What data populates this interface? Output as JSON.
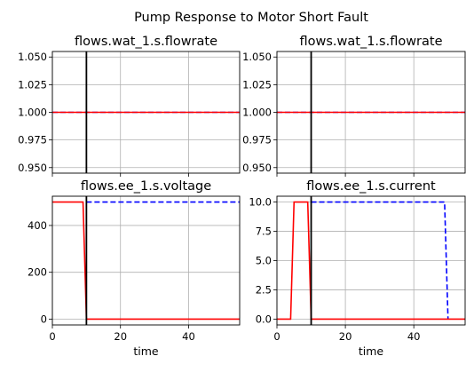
{
  "figure": {
    "suptitle": "Pump Response to Motor Short Fault"
  },
  "colors": {
    "nominal": "#0000ff",
    "faulty": "#ff0000",
    "fault_time_line": "#000000",
    "grid": "#b0b0b0"
  },
  "chart_data": [
    {
      "type": "line",
      "title": "flows.wat_1.s.flowrate",
      "xlabel": "",
      "show_xticklabels": false,
      "xlim": [
        0,
        55
      ],
      "ylim": [
        0.945,
        1.055
      ],
      "xticks": [
        0,
        20,
        40
      ],
      "yticks": [
        0.95,
        0.975,
        1.0,
        1.025,
        1.05
      ],
      "ytick_labels": [
        "0.950",
        "0.975",
        "1.000",
        "1.025",
        "1.050"
      ],
      "grid": true,
      "fault_time": 10,
      "series": [
        {
          "style": "dashed",
          "color": "#0000ff",
          "x": [
            0,
            55
          ],
          "y": [
            1.0,
            1.0
          ]
        },
        {
          "style": "solid",
          "color": "#ff0000",
          "x": [
            0,
            55
          ],
          "y": [
            1.0,
            1.0
          ]
        }
      ]
    },
    {
      "type": "line",
      "title": "flows.wat_1.s.flowrate",
      "xlabel": "",
      "show_xticklabels": false,
      "xlim": [
        0,
        55
      ],
      "ylim": [
        0.945,
        1.055
      ],
      "xticks": [
        0,
        20,
        40
      ],
      "yticks": [
        0.95,
        0.975,
        1.0,
        1.025,
        1.05
      ],
      "ytick_labels": [
        "0.950",
        "0.975",
        "1.000",
        "1.025",
        "1.050"
      ],
      "grid": true,
      "fault_time": 10,
      "series": [
        {
          "style": "dashed",
          "color": "#0000ff",
          "x": [
            0,
            55
          ],
          "y": [
            1.0,
            1.0
          ]
        },
        {
          "style": "solid",
          "color": "#ff0000",
          "x": [
            0,
            55
          ],
          "y": [
            1.0,
            1.0
          ]
        }
      ]
    },
    {
      "type": "line",
      "title": "flows.ee_1.s.voltage",
      "xlabel": "time",
      "show_xticklabels": true,
      "xlim": [
        0,
        55
      ],
      "ylim": [
        -25,
        525
      ],
      "xticks": [
        0,
        20,
        40
      ],
      "yticks": [
        0,
        200,
        400
      ],
      "ytick_labels": [
        "0",
        "200",
        "400"
      ],
      "grid": true,
      "fault_time": 10,
      "series": [
        {
          "style": "dashed",
          "color": "#0000ff",
          "x": [
            10,
            55
          ],
          "y": [
            500,
            500
          ]
        },
        {
          "style": "solid",
          "color": "#ff0000",
          "x": [
            0,
            9,
            10,
            55
          ],
          "y": [
            500,
            500,
            0,
            0
          ]
        }
      ]
    },
    {
      "type": "line",
      "title": "flows.ee_1.s.current",
      "xlabel": "time",
      "show_xticklabels": true,
      "xlim": [
        0,
        55
      ],
      "ylim": [
        -0.5,
        10.5
      ],
      "xticks": [
        0,
        20,
        40
      ],
      "yticks": [
        0.0,
        2.5,
        5.0,
        7.5,
        10.0
      ],
      "ytick_labels": [
        "0.0",
        "2.5",
        "5.0",
        "7.5",
        "10.0"
      ],
      "grid": true,
      "fault_time": 10,
      "series": [
        {
          "style": "dashed",
          "color": "#0000ff",
          "x": [
            10,
            49,
            50
          ],
          "y": [
            10,
            10,
            0
          ]
        },
        {
          "style": "solid",
          "color": "#ff0000",
          "x": [
            0,
            4,
            5,
            9,
            10,
            55
          ],
          "y": [
            0,
            0,
            10,
            10,
            0,
            0
          ]
        }
      ]
    }
  ]
}
